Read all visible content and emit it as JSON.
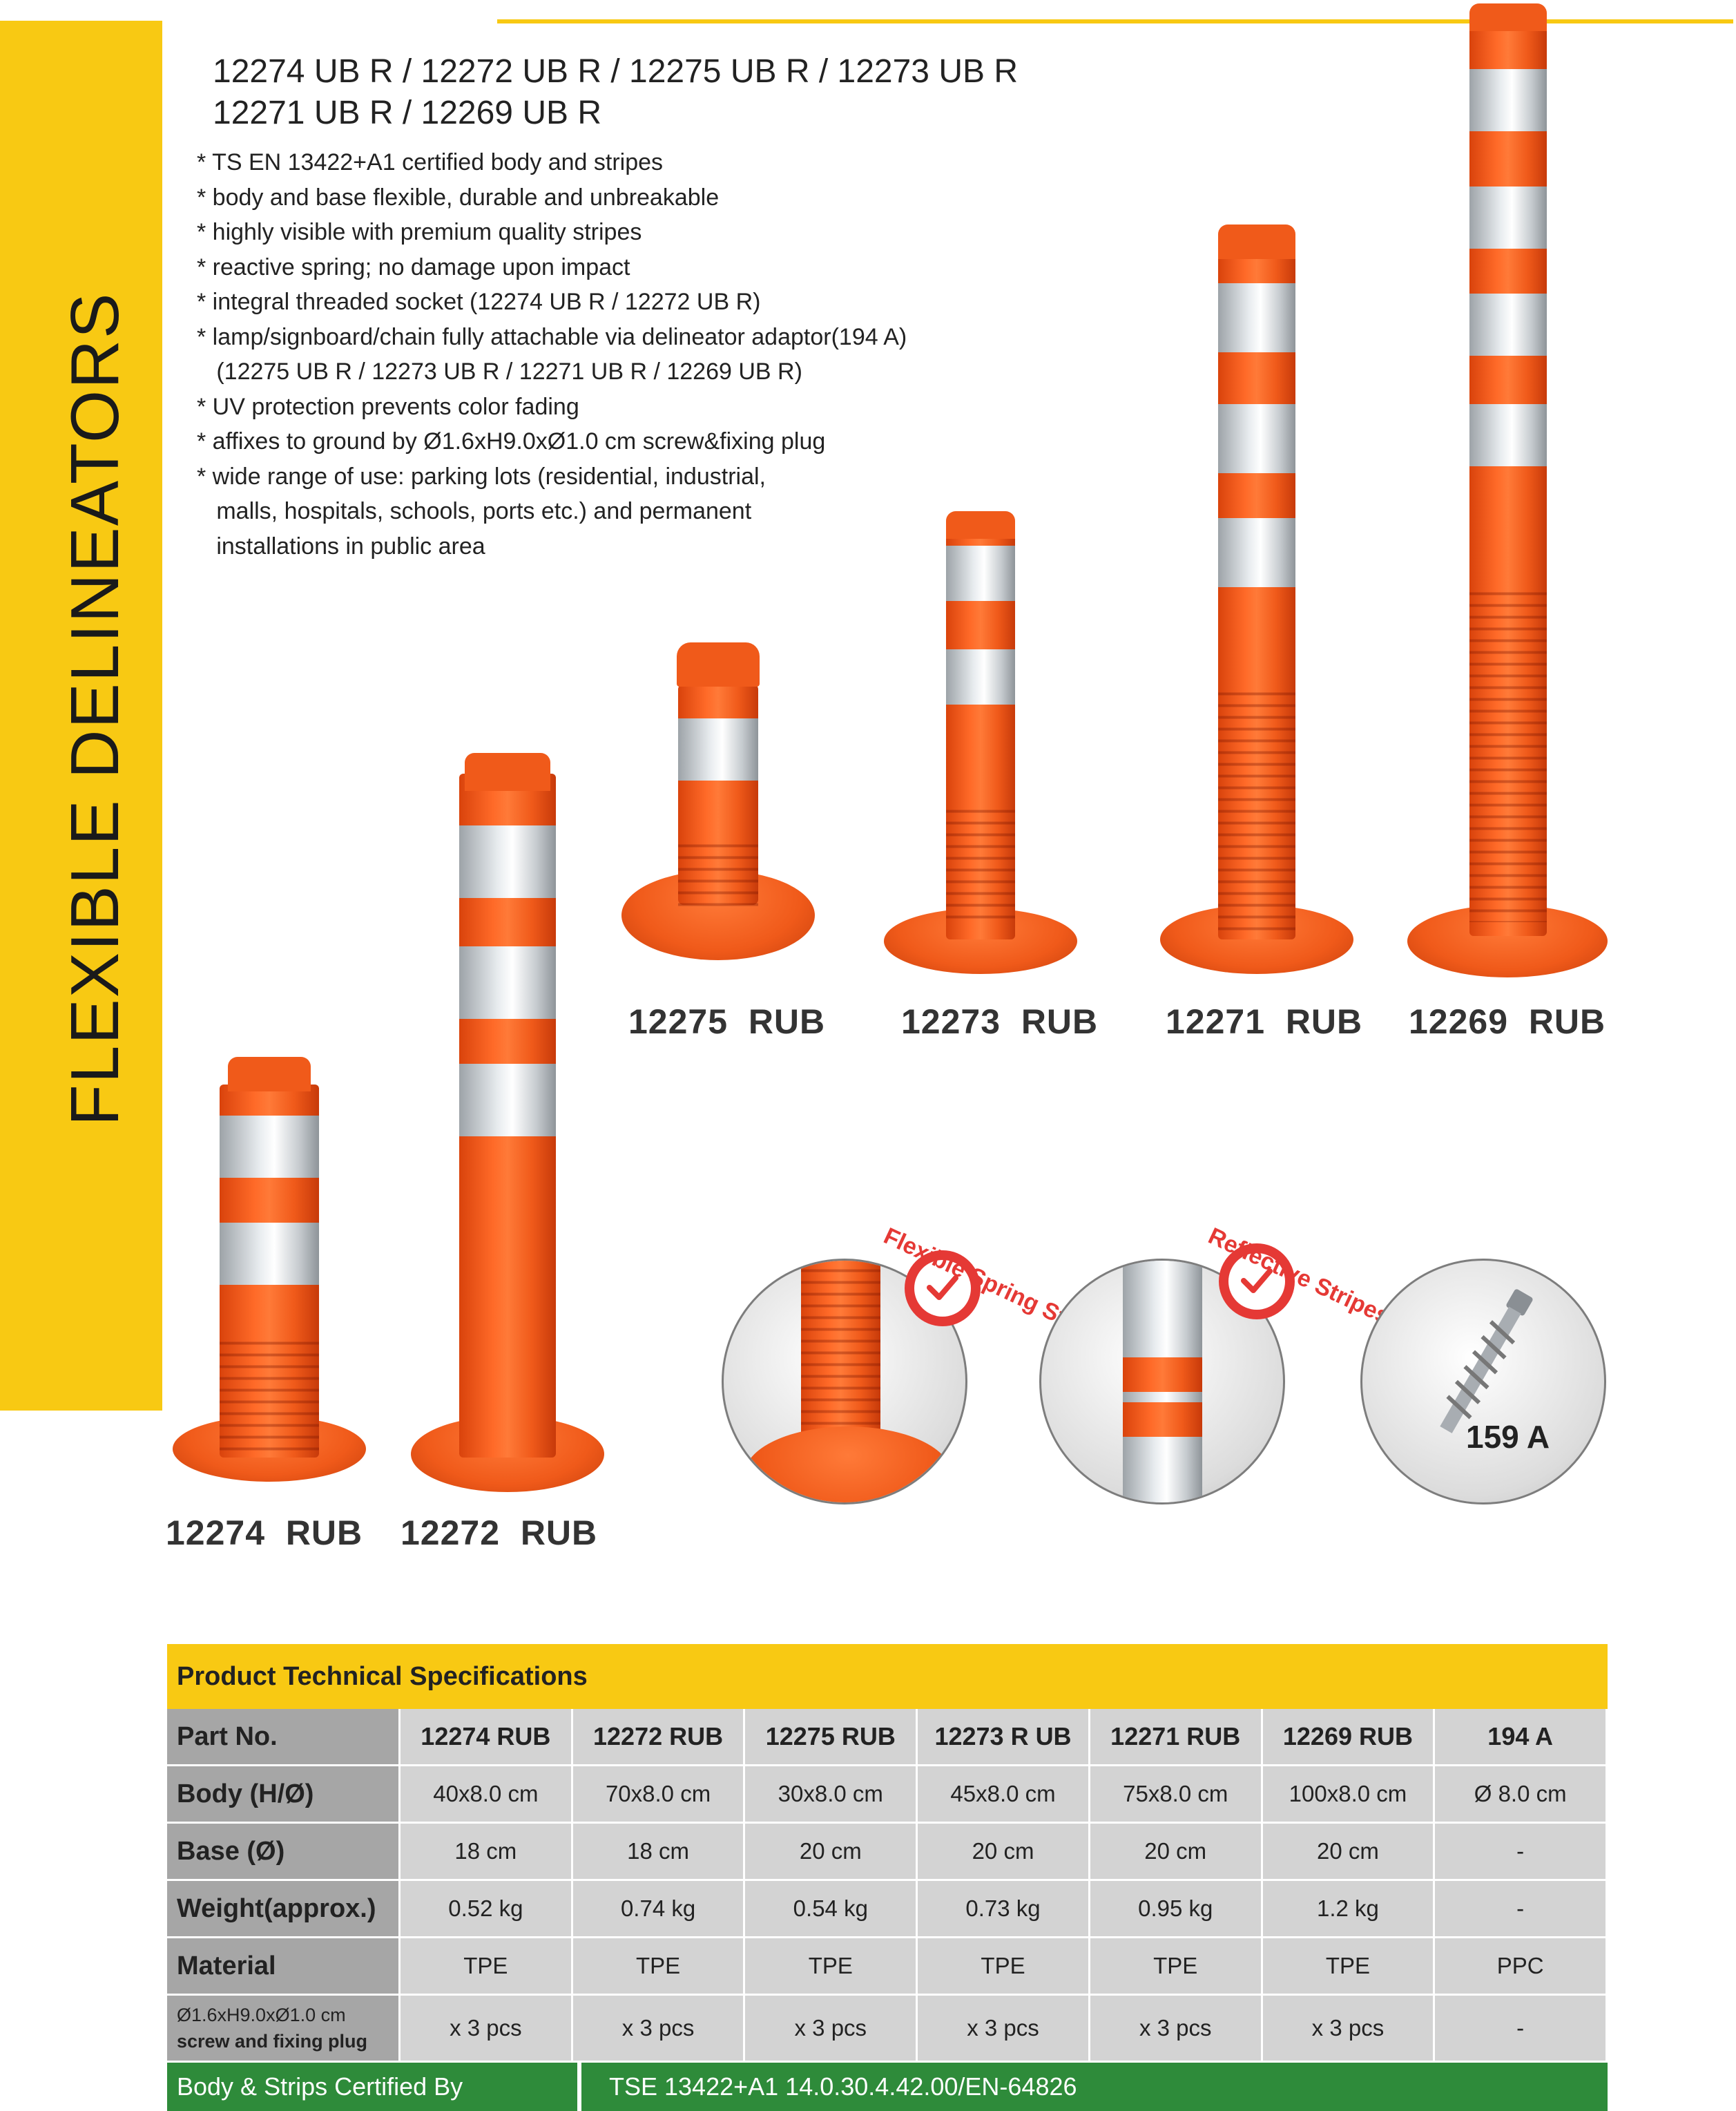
{
  "sidebar": {
    "title": "FLEXIBLE DELINEATORS"
  },
  "header": {
    "models_line1": "12274 UB R / 12272 UB R / 12275 UB R / 12273 UB R",
    "models_line2": "12271 UB R / 12269 UB R"
  },
  "features": [
    "* TS EN 13422+A1 certified body and stripes",
    "* body and base flexible, durable and unbreakable",
    "* highly visible with premium quality stripes",
    "* reactive spring; no damage upon impact",
    "* integral threaded socket (12274 UB R / 12272 UB R)",
    "* lamp/signboard/chain fully attachable via delineator adaptor(194 A)",
    "   (12275 UB R / 12273 UB R / 12271 UB R / 12269 UB R)",
    "* UV protection prevents color fading",
    "* affixes to ground by Ø1.6xH9.0xØ1.0 cm screw&fixing plug",
    "* wide range of use: parking lots (residential, industrial,",
    "   malls, hospitals, schools, ports etc.) and permanent",
    "   installations in public area"
  ],
  "products": {
    "p12275": "12275  RUB",
    "p12273": "12273  RUB",
    "p12271": "12271  RUB",
    "p12269": "12269  RUB",
    "p12274": "12274  RUB",
    "p12272": "12272  RUB"
  },
  "badges": {
    "spring": "Flexible Spring Stand",
    "reflective": "Reflective Stripes",
    "screw": "159 A"
  },
  "colors": {
    "accent_yellow": "#f8c913",
    "post_orange": "#f05a1a",
    "cert_green": "#2e8b3a",
    "badge_red": "#e53935"
  },
  "specs": {
    "title": "Product Technical Specifications",
    "rows": [
      {
        "label": "Part No.",
        "values": [
          "12274  RUB",
          "12272  RUB",
          "12275  RUB",
          "12273  R UB",
          "12271   RUB",
          "12269  RUB",
          "194 A"
        ]
      },
      {
        "label": "Body (H/Ø)",
        "values": [
          "40x8.0 cm",
          "70x8.0 cm",
          "30x8.0 cm",
          "45x8.0 cm",
          "75x8.0 cm",
          "100x8.0 cm",
          "Ø 8.0 cm"
        ]
      },
      {
        "label": "Base (Ø)",
        "values": [
          "18 cm",
          "18 cm",
          "20 cm",
          "20 cm",
          "20 cm",
          "20 cm",
          "-"
        ]
      },
      {
        "label": "Weight(approx.)",
        "values": [
          "0.52 kg",
          "0.74 kg",
          "0.54 kg",
          "0.73 kg",
          "0.95 kg",
          "1.2 kg",
          "-"
        ]
      },
      {
        "label": "Material",
        "values": [
          "TPE",
          "TPE",
          "TPE",
          "TPE",
          "TPE",
          "TPE",
          "PPC"
        ]
      },
      {
        "label_line1": "Ø1.6xH9.0xØ1.0 cm",
        "label_line2": "screw and fixing plug",
        "values": [
          "x 3 pcs",
          "x 3 pcs",
          "x 3 pcs",
          "x 3 pcs",
          "x 3 pcs",
          "x 3 pcs",
          "-"
        ]
      }
    ],
    "cert_label": "Body & Strips Certified By",
    "cert_value": "TSE 13422+A1 14.0.30.4.42.00/EN-64826"
  }
}
